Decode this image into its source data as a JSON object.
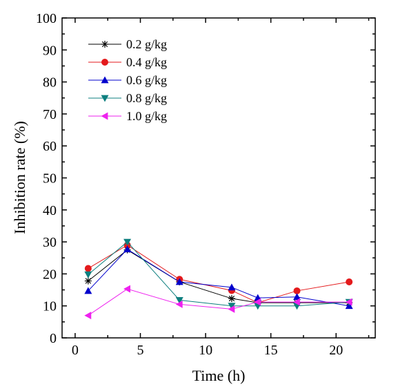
{
  "chart_data": {
    "type": "line",
    "title": "",
    "xlabel": "Time (h)",
    "ylabel": "Inhibition rate (%)",
    "xlim": [
      -1,
      23
    ],
    "ylim": [
      0,
      100
    ],
    "xticks": [
      "0",
      "5",
      "10",
      "15",
      "20"
    ],
    "yticks": [
      "0",
      "10",
      "20",
      "30",
      "40",
      "50",
      "60",
      "70",
      "80",
      "90",
      "100"
    ],
    "grid": false,
    "legend_position": "top-left",
    "series": [
      {
        "name": "0.2 g/kg",
        "color": "#000000",
        "marker": "star",
        "x": [
          1,
          4,
          8,
          12,
          14,
          17,
          21
        ],
        "y": [
          17.8,
          27.5,
          17.5,
          12.3,
          11,
          11,
          11
        ]
      },
      {
        "name": "0.4 g/kg",
        "color": "#e41a1c",
        "marker": "circle",
        "x": [
          1,
          4,
          8,
          12,
          14,
          17,
          21
        ],
        "y": [
          21.7,
          29,
          18.3,
          14.8,
          11,
          14.7,
          17.5
        ]
      },
      {
        "name": "0.6 g/kg",
        "color": "#0000cc",
        "marker": "triangle-up",
        "x": [
          1,
          4,
          8,
          12,
          14,
          17,
          21
        ],
        "y": [
          14.7,
          27.7,
          17.5,
          15.8,
          12.5,
          12.8,
          10
        ]
      },
      {
        "name": "0.8 g/kg",
        "color": "#0d7f7f",
        "marker": "triangle-down",
        "x": [
          1,
          4,
          8,
          12,
          14,
          17,
          21
        ],
        "y": [
          19.8,
          30,
          11.8,
          10,
          10,
          10,
          11.2
        ]
      },
      {
        "name": "1.0 g/kg",
        "color": "#ee22ee",
        "marker": "triangle-left",
        "x": [
          1,
          4,
          8,
          12,
          14,
          17,
          21
        ],
        "y": [
          7,
          15.3,
          10.5,
          9,
          11.2,
          11.2,
          11.2
        ]
      }
    ]
  }
}
